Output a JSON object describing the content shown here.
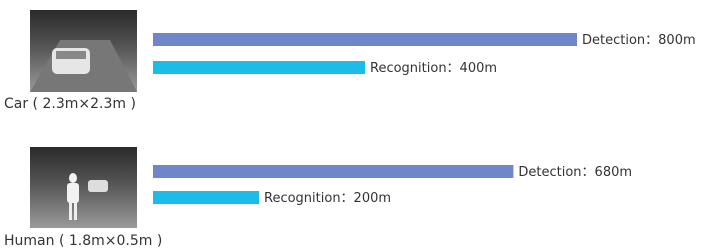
{
  "chart_data": [
    {
      "type": "bar",
      "title": "Car ( 2.3m×2.3m )",
      "values": [
        800,
        400
      ],
      "value_labels": [
        "Detection：800m",
        "Recognition：400m"
      ],
      "colors": [
        "#6f86c9",
        "#1bbde8"
      ],
      "xlim": [
        0,
        800
      ]
    },
    {
      "type": "bar",
      "title": "Human ( 1.8m×0.5m )",
      "values": [
        680,
        200
      ],
      "value_labels": [
        "Detection：680m",
        "Recognition：200m"
      ],
      "colors": [
        "#6f86c9",
        "#1bbde8"
      ],
      "xlim": [
        0,
        800
      ]
    }
  ]
}
